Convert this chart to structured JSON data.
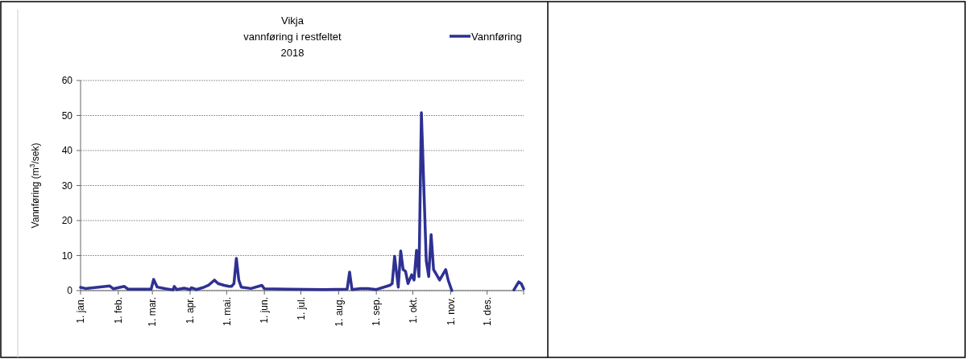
{
  "chart_data": {
    "type": "line",
    "title": "Vikja\nvannføring i restfeltet\n2018",
    "ylabel": "Vannføring (m$^{3}$/sek)",
    "x": [
      "2018-01-01",
      "2018-01-05",
      "2018-01-25",
      "2018-01-28",
      "2018-02-06",
      "2018-02-09",
      "2018-02-28",
      "2018-03-02",
      "2018-03-05",
      "2018-03-12",
      "2018-03-18",
      "2018-03-19",
      "2018-03-21",
      "2018-03-27",
      "2018-04-01",
      "2018-04-02",
      "2018-04-06",
      "2018-04-11",
      "2018-04-16",
      "2018-04-21",
      "2018-04-24",
      "2018-04-29",
      "2018-05-03",
      "2018-05-05",
      "2018-05-07",
      "2018-05-09",
      "2018-05-11",
      "2018-05-13",
      "2018-05-21",
      "2018-05-30",
      "2018-06-01",
      "2018-06-20",
      "2018-07-20",
      "2018-08-08",
      "2018-08-10",
      "2018-08-12",
      "2018-08-19",
      "2018-08-25",
      "2018-09-01",
      "2018-09-12",
      "2018-09-14",
      "2018-09-16",
      "2018-09-19",
      "2018-09-21",
      "2018-09-23",
      "2018-09-25",
      "2018-09-27",
      "2018-09-30",
      "2018-10-02",
      "2018-10-04",
      "2018-10-06",
      "2018-10-08",
      "2018-10-12",
      "2018-10-14",
      "2018-10-16",
      "2018-10-18",
      "2018-10-23",
      "2018-10-28",
      "2018-10-30",
      "2018-11-02",
      "2018-11-20",
      "2018-12-23",
      "2018-12-27",
      "2018-12-29",
      "2018-12-31"
    ],
    "series": [
      {
        "name": "Vannføring",
        "color": "#2e3192",
        "values": [
          0.9,
          0.6,
          1.3,
          0.5,
          1.2,
          0.4,
          0.4,
          3.2,
          1.0,
          0.5,
          0.2,
          1.2,
          0.3,
          0.7,
          0.3,
          0.8,
          0.3,
          0.8,
          1.5,
          3.0,
          2.0,
          1.5,
          1.2,
          1.2,
          2.0,
          9.2,
          3.0,
          1.0,
          0.6,
          1.5,
          0.5,
          0.4,
          0.3,
          0.4,
          5.3,
          0.3,
          0.6,
          0.6,
          0.3,
          1.5,
          2.0,
          9.8,
          1.0,
          11.3,
          6,
          5.5,
          2,
          4.5,
          3,
          11.5,
          4,
          50.8,
          8.5,
          4,
          16,
          6,
          3,
          6,
          3,
          0,
          null,
          0.2,
          2.5,
          2,
          0.5
        ]
      }
    ],
    "xlim": [
      "2018-01-01",
      "2018-12-31"
    ],
    "xticks": [
      {
        "value": "2018-01-01",
        "label": "1. jan."
      },
      {
        "value": "2018-02-01",
        "label": "1. feb."
      },
      {
        "value": "2018-03-01",
        "label": "1. mar."
      },
      {
        "value": "2018-04-01",
        "label": "1. apr."
      },
      {
        "value": "2018-05-01",
        "label": "1. mai."
      },
      {
        "value": "2018-06-01",
        "label": "1. jun."
      },
      {
        "value": "2018-07-01",
        "label": "1. jul."
      },
      {
        "value": "2018-08-01",
        "label": "1. aug."
      },
      {
        "value": "2018-09-01",
        "label": "1. sep."
      },
      {
        "value": "2018-10-01",
        "label": "1. okt."
      },
      {
        "value": "2018-11-01",
        "label": "1. nov."
      },
      {
        "value": "2018-12-01",
        "label": "1. des."
      },
      {
        "value": "2018-12-31",
        "label": null
      }
    ],
    "ylim": [
      0,
      60
    ],
    "yticks": [
      0,
      10,
      20,
      30,
      40,
      50,
      60
    ],
    "grid": "y",
    "legend": "top right",
    "line_style": "solid"
  }
}
